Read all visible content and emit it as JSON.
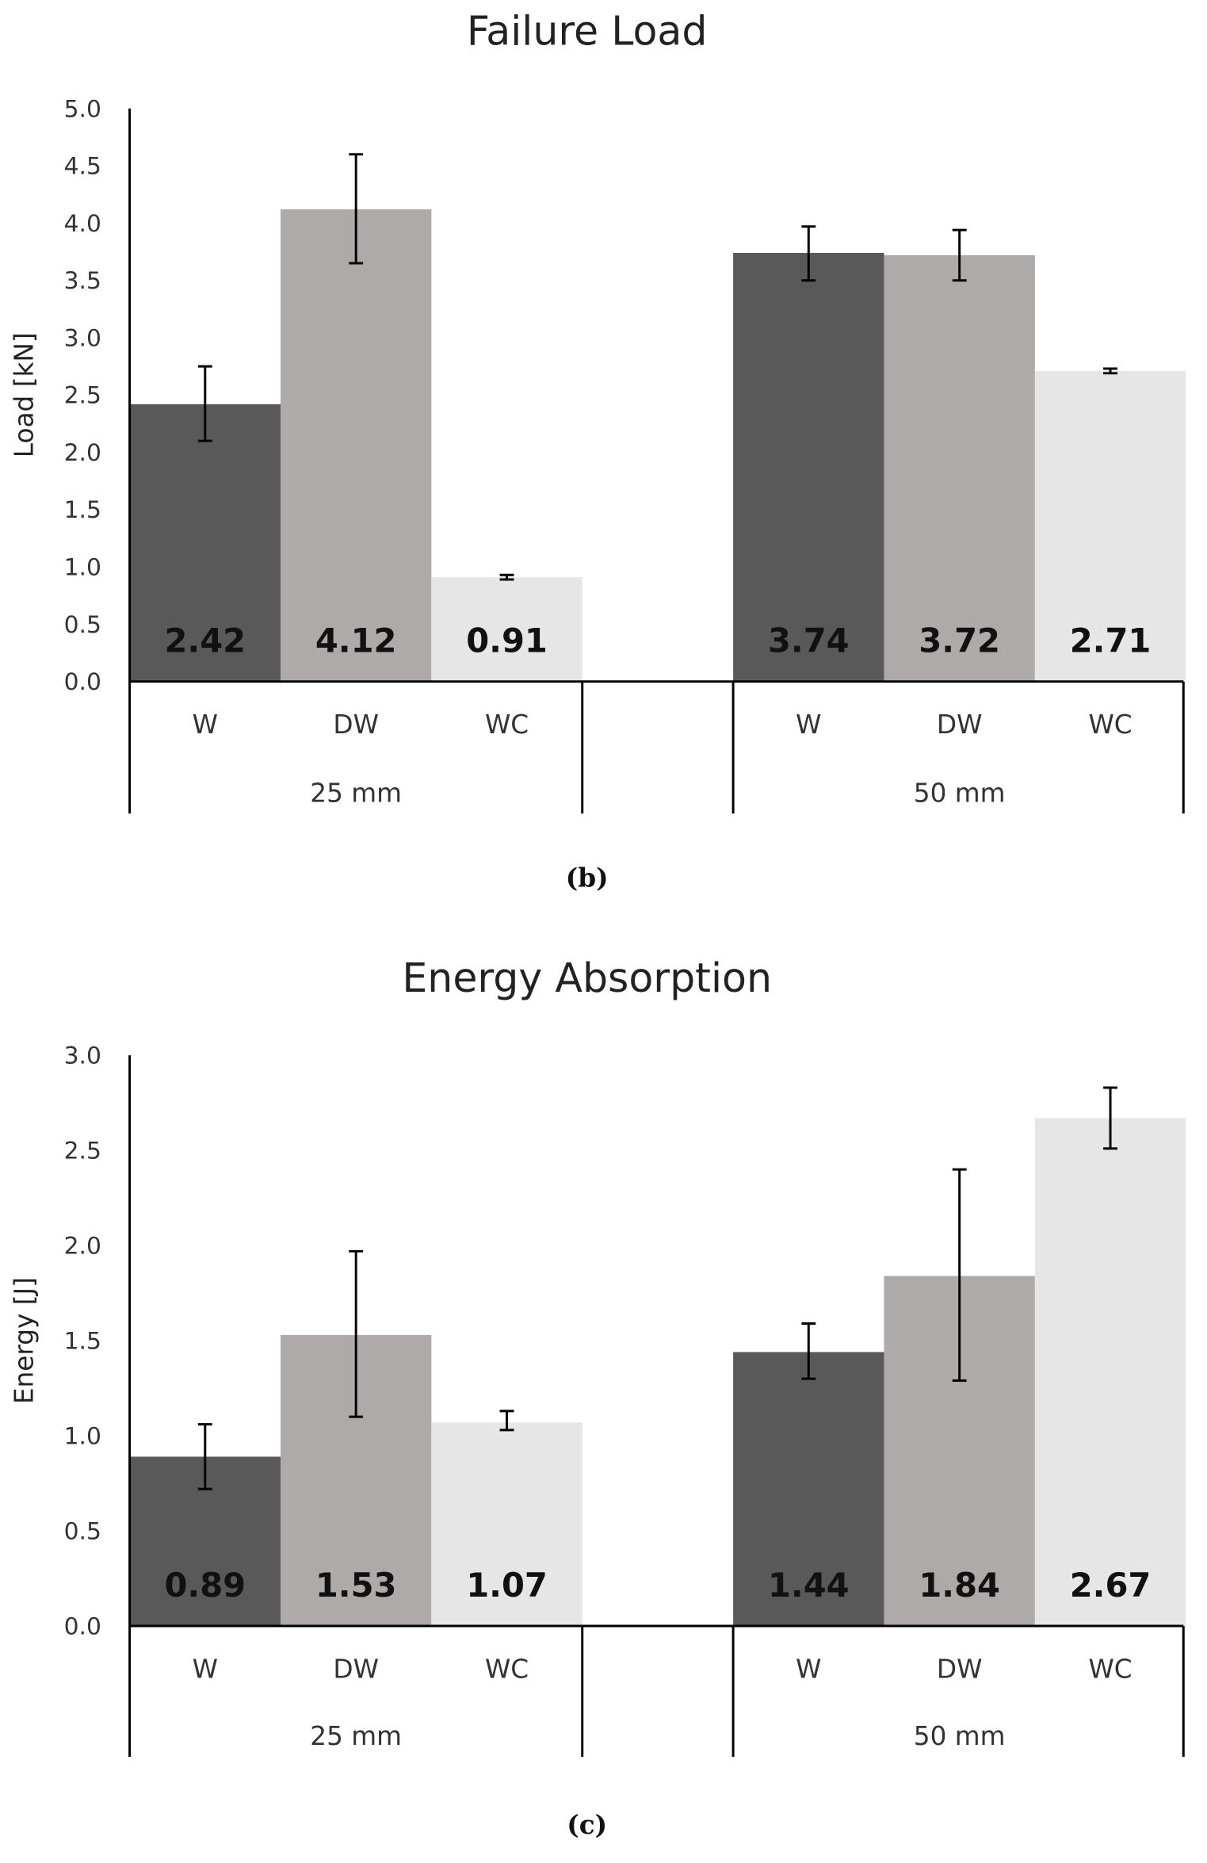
{
  "chart_data": [
    {
      "type": "bar",
      "title": "Failure Load",
      "ylabel": "Load [kN]",
      "xlabel": "",
      "caption": "(b)",
      "ylim": [
        0,
        5
      ],
      "yticks": [
        "0.0",
        "0.5",
        "1.0",
        "1.5",
        "2.0",
        "2.5",
        "3.0",
        "3.5",
        "4.0",
        "4.5",
        "5.0"
      ],
      "groups": [
        "25 mm",
        "50 mm"
      ],
      "categories": [
        "W",
        "DW",
        "WC"
      ],
      "colors": [
        "#595959",
        "#aeaaaa",
        "#e7e6e6"
      ],
      "values": [
        [
          2.42,
          4.12,
          0.91
        ],
        [
          3.74,
          3.72,
          2.71
        ]
      ],
      "labels": [
        [
          "2.42",
          "4.12",
          "0.91"
        ],
        [
          "3.74",
          "3.72",
          "2.71"
        ]
      ],
      "error_low": [
        [
          2.1,
          3.65,
          0.89
        ],
        [
          3.5,
          3.5,
          2.69
        ]
      ],
      "error_high": [
        [
          2.75,
          4.6,
          0.93
        ],
        [
          3.97,
          3.94,
          2.73
        ]
      ],
      "grid": false
    },
    {
      "type": "bar",
      "title": "Energy Absorption",
      "ylabel": "Energy [J]",
      "xlabel": "",
      "caption": "(c)",
      "ylim": [
        0,
        3
      ],
      "yticks": [
        "0.0",
        "0.5",
        "1.0",
        "1.5",
        "2.0",
        "2.5",
        "3.0"
      ],
      "groups": [
        "25 mm",
        "50 mm"
      ],
      "categories": [
        "W",
        "DW",
        "WC"
      ],
      "colors": [
        "#595959",
        "#aeaaaa",
        "#e7e6e6"
      ],
      "values": [
        [
          0.89,
          1.53,
          1.07
        ],
        [
          1.44,
          1.84,
          2.67
        ]
      ],
      "labels": [
        [
          "0.89",
          "1.53",
          "1.07"
        ],
        [
          "1.44",
          "1.84",
          "2.67"
        ]
      ],
      "error_low": [
        [
          0.72,
          1.1,
          1.03
        ],
        [
          1.3,
          1.29,
          2.51
        ]
      ],
      "error_high": [
        [
          1.06,
          1.97,
          1.13
        ],
        [
          1.59,
          2.4,
          2.83
        ]
      ],
      "grid": false
    }
  ]
}
